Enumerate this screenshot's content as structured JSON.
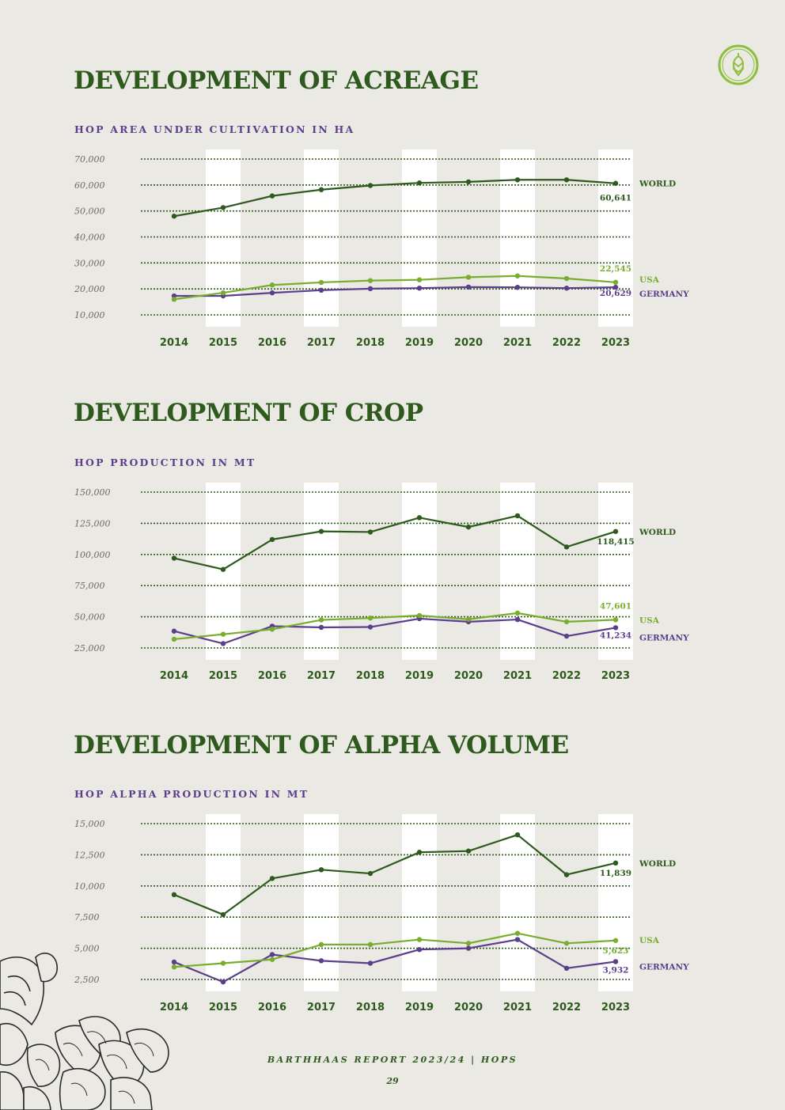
{
  "colors": {
    "world": "#2f5a1e",
    "usa": "#79ad2e",
    "germany": "#5b3e8c",
    "logo": "#8dbf3a"
  },
  "logo_icon": "hop-cone-icon",
  "decoration_icon": "hop-cones-illustration",
  "footer": {
    "report": "BARTHHAAS REPORT 2023/24 | HOPS",
    "page": "29"
  },
  "sections": [
    {
      "title": "DEVELOPMENT OF ACREAGE",
      "subtitle": "HOP AREA UNDER CULTIVATION IN HA"
    },
    {
      "title": "DEVELOPMENT OF CROP",
      "subtitle": "HOP PRODUCTION IN MT"
    },
    {
      "title": "DEVELOPMENT OF ALPHA VOLUME",
      "subtitle": "HOP ALPHA PRODUCTION IN MT"
    }
  ],
  "chart_data": [
    {
      "type": "line",
      "title": "HOP AREA UNDER CULTIVATION IN HA",
      "x": [
        2014,
        2015,
        2016,
        2017,
        2018,
        2019,
        2020,
        2021,
        2022,
        2023
      ],
      "yticks": [
        10000,
        20000,
        30000,
        40000,
        50000,
        60000,
        70000
      ],
      "ytick_labels": [
        "10,000",
        "20,000",
        "30,000",
        "40,000",
        "50,000",
        "60,000",
        "70,000"
      ],
      "ylim": [
        10000,
        70000
      ],
      "series": [
        {
          "name": "WORLD",
          "key": "world",
          "values": [
            48000,
            51300,
            55800,
            58200,
            59800,
            60800,
            61200,
            62000,
            62000,
            60641
          ],
          "end_label": "60,641"
        },
        {
          "name": "USA",
          "key": "usa",
          "values": [
            16000,
            18500,
            21500,
            22500,
            23200,
            23500,
            24500,
            25000,
            24000,
            22545
          ],
          "end_label": "22,545"
        },
        {
          "name": "GERMANY",
          "key": "germany",
          "values": [
            17300,
            17300,
            18500,
            19500,
            20100,
            20300,
            20700,
            20600,
            20300,
            20629
          ],
          "end_label": "20,629"
        }
      ]
    },
    {
      "type": "line",
      "title": "HOP PRODUCTION IN MT",
      "x": [
        2014,
        2015,
        2016,
        2017,
        2018,
        2019,
        2020,
        2021,
        2022,
        2023
      ],
      "yticks": [
        25000,
        50000,
        75000,
        100000,
        125000,
        150000
      ],
      "ytick_labels": [
        "25,000",
        "50,000",
        "75,000",
        "100,000",
        "125,000",
        "150,000"
      ],
      "ylim": [
        25000,
        150000
      ],
      "series": [
        {
          "name": "WORLD",
          "key": "world",
          "values": [
            97000,
            88000,
            112000,
            118500,
            118000,
            129500,
            122000,
            131000,
            106000,
            118415
          ],
          "end_label": "118,415"
        },
        {
          "name": "USA",
          "key": "usa",
          "values": [
            32000,
            36000,
            40000,
            47500,
            49000,
            51000,
            48000,
            53000,
            46000,
            47601
          ],
          "end_label": "47,601"
        },
        {
          "name": "GERMANY",
          "key": "germany",
          "values": [
            38500,
            28500,
            42500,
            41500,
            41800,
            48500,
            46000,
            47800,
            34500,
            41234
          ],
          "end_label": "41,234"
        }
      ]
    },
    {
      "type": "line",
      "title": "HOP ALPHA PRODUCTION IN MT",
      "x": [
        2014,
        2015,
        2016,
        2017,
        2018,
        2019,
        2020,
        2021,
        2022,
        2023
      ],
      "yticks": [
        2500,
        5000,
        7500,
        10000,
        12500,
        15000
      ],
      "ytick_labels": [
        "2,500",
        "5,000",
        "7,500",
        "10,000",
        "12,500",
        "15,000"
      ],
      "ylim": [
        2500,
        15000
      ],
      "series": [
        {
          "name": "WORLD",
          "key": "world",
          "values": [
            9300,
            7700,
            10600,
            11300,
            11000,
            12700,
            12800,
            14100,
            10900,
            11839
          ],
          "end_label": "11,839"
        },
        {
          "name": "USA",
          "key": "usa",
          "values": [
            3500,
            3800,
            4100,
            5300,
            5300,
            5700,
            5400,
            6200,
            5400,
            5623
          ],
          "end_label": "5,623"
        },
        {
          "name": "GERMANY",
          "key": "germany",
          "values": [
            3900,
            2300,
            4500,
            4000,
            3800,
            4900,
            5000,
            5700,
            3400,
            3932
          ],
          "end_label": "3,932"
        }
      ]
    }
  ]
}
